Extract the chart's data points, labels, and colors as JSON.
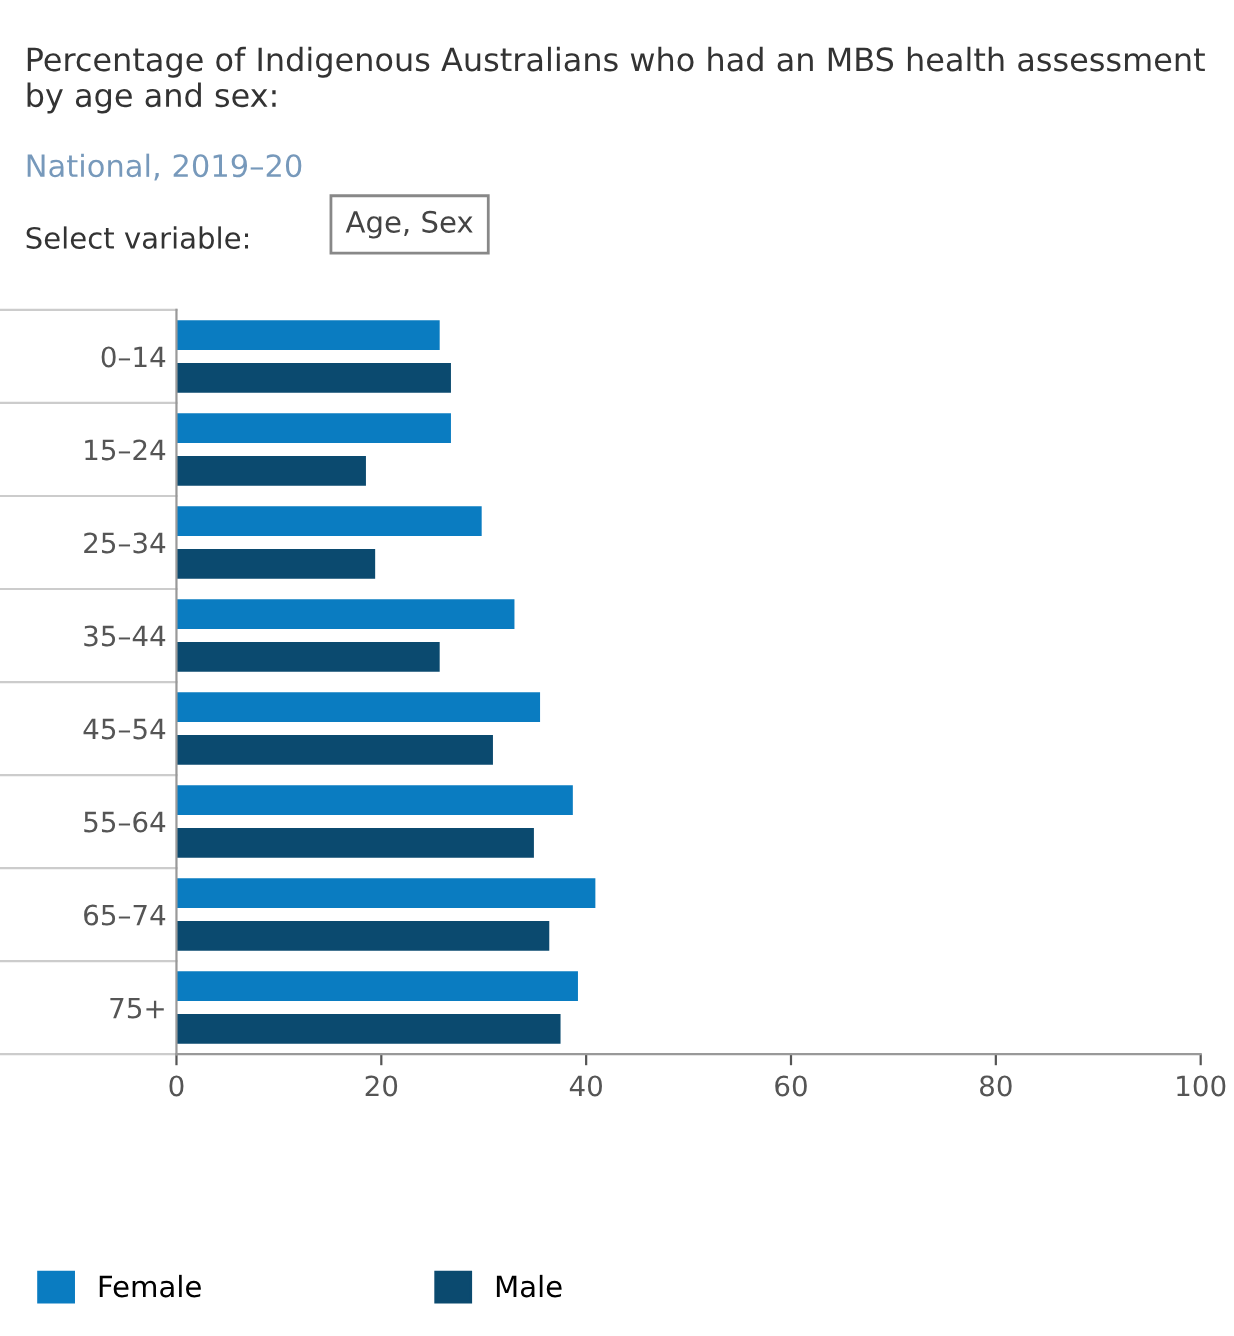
{
  "chart_data": {
    "type": "bar",
    "orientation": "horizontal",
    "title": "Percentage of Indigenous Australians who had an MBS health assessment by age and sex:",
    "subtitle": "National, 2019–20",
    "annotations": [
      "Select variable:",
      "Age, Sex"
    ],
    "categories": [
      "0–14",
      "15–24",
      "25–34",
      "35–44",
      "45–54",
      "55–64",
      "65–74",
      "75+"
    ],
    "series": [
      {
        "name": "Female",
        "color": "#0a7cc1",
        "values": [
          25.7,
          26.8,
          29.8,
          33,
          35.5,
          38.7,
          40.9,
          39.2
        ]
      },
      {
        "name": "Male",
        "color": "#0b4a6f",
        "values": [
          26.8,
          18.5,
          19.4,
          25.7,
          30.9,
          34.9,
          36.4,
          37.5
        ]
      }
    ],
    "xlim": [
      0,
      100
    ],
    "xticks": [
      0,
      20,
      40,
      60,
      80,
      100
    ],
    "grid": false,
    "legend": "bottom left"
  }
}
